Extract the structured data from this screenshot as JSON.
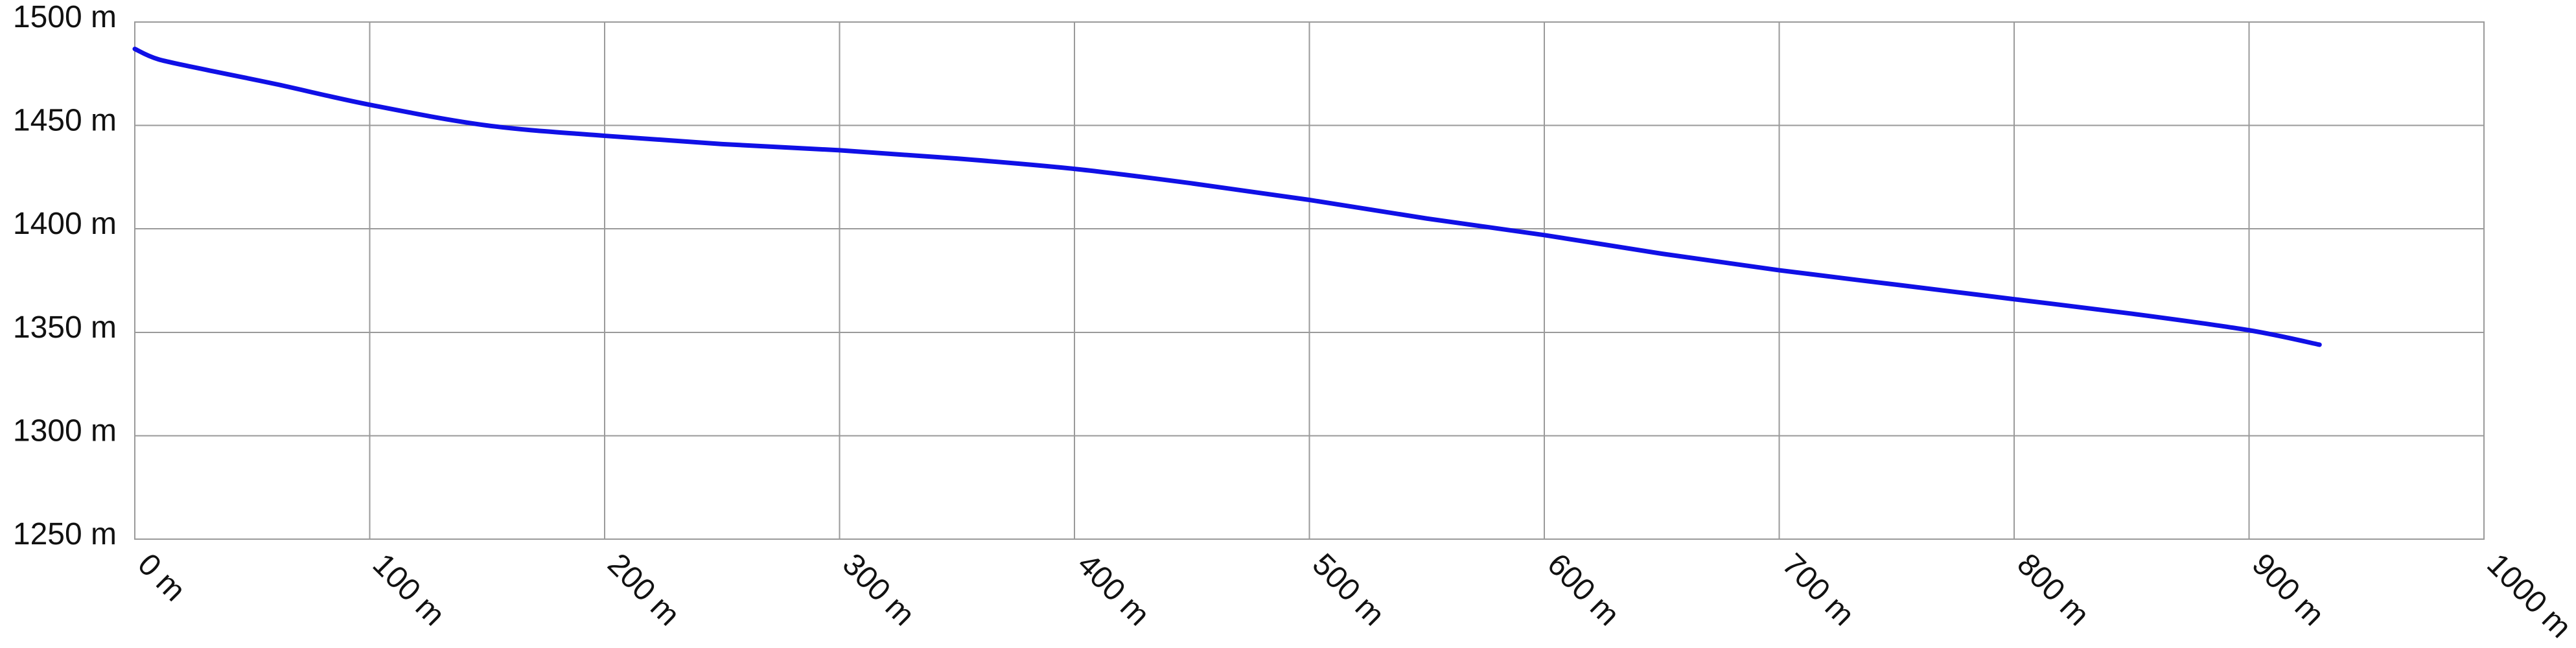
{
  "chart_data": {
    "type": "line",
    "title": "",
    "xlabel": "",
    "ylabel": "",
    "xlim": [
      0,
      1000
    ],
    "ylim": [
      1250,
      1500
    ],
    "grid": true,
    "legend": "none",
    "x_ticks": [
      0,
      100,
      200,
      300,
      400,
      500,
      600,
      700,
      800,
      900,
      1000
    ],
    "x_tick_labels": [
      "0 m",
      "100 m",
      "200 m",
      "300 m",
      "400 m",
      "500 m",
      "600 m",
      "700 m",
      "800 m",
      "900 m",
      "1000 m"
    ],
    "y_ticks": [
      1250,
      1300,
      1350,
      1400,
      1450,
      1500
    ],
    "y_tick_labels": [
      "1250 m",
      "1300 m",
      "1350 m",
      "1400 m",
      "1450 m",
      "1500 m"
    ],
    "series": [
      {
        "color": "#1010e6",
        "x": [
          0,
          10,
          30,
          60,
          100,
          150,
          200,
          250,
          300,
          350,
          400,
          450,
          500,
          550,
          600,
          650,
          700,
          750,
          800,
          850,
          900,
          930
        ],
        "values": [
          1487,
          1482,
          1477,
          1470,
          1460,
          1450,
          1445,
          1441,
          1438,
          1434,
          1429,
          1422,
          1414,
          1405,
          1397,
          1388,
          1380,
          1373,
          1366,
          1359,
          1351,
          1344
        ]
      }
    ]
  }
}
